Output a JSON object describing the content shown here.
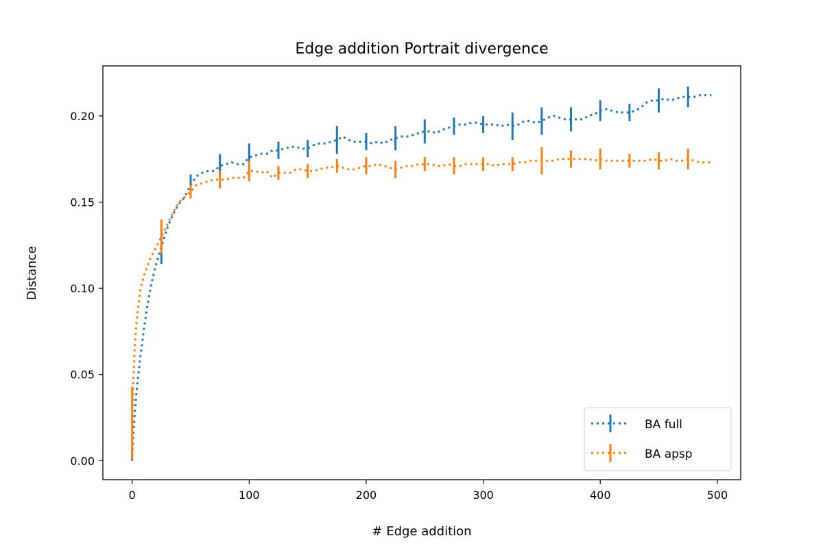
{
  "chart_data": {
    "type": "line",
    "title": "Edge addition Portrait divergence",
    "xlabel": "# Edge addition",
    "ylabel": "Distance",
    "xlim": [
      -25,
      520
    ],
    "ylim": [
      -0.011,
      0.229
    ],
    "xticks": [
      0,
      100,
      200,
      300,
      400,
      500
    ],
    "xtick_labels": [
      "0",
      "100",
      "200",
      "300",
      "400",
      "500"
    ],
    "yticks": [
      0.0,
      0.05,
      0.1,
      0.15,
      0.2
    ],
    "ytick_labels": [
      "0.00",
      "0.05",
      "0.10",
      "0.15",
      "0.20"
    ],
    "grid": false,
    "legend_position": "lower right",
    "series": [
      {
        "name": "BA full",
        "color": "#1f77b4",
        "linestyle": "dotted",
        "x": [
          0,
          1,
          2,
          3,
          5,
          7,
          10,
          13,
          16,
          20,
          25,
          30,
          35,
          40,
          45,
          50,
          55,
          60,
          65,
          70,
          75,
          80,
          85,
          90,
          95,
          100,
          105,
          110,
          115,
          120,
          125,
          130,
          135,
          140,
          145,
          150,
          155,
          160,
          165,
          170,
          175,
          180,
          185,
          190,
          195,
          200,
          205,
          210,
          215,
          220,
          225,
          230,
          235,
          240,
          245,
          250,
          255,
          260,
          265,
          270,
          275,
          280,
          285,
          290,
          295,
          300,
          305,
          310,
          315,
          320,
          325,
          330,
          335,
          340,
          345,
          350,
          355,
          360,
          365,
          370,
          375,
          380,
          385,
          390,
          395,
          400,
          405,
          410,
          415,
          420,
          425,
          430,
          435,
          440,
          445,
          450,
          455,
          460,
          465,
          470,
          475,
          480,
          485,
          490,
          495
        ],
        "y": [
          0.003,
          0.015,
          0.025,
          0.034,
          0.048,
          0.06,
          0.076,
          0.09,
          0.101,
          0.113,
          0.124,
          0.135,
          0.143,
          0.149,
          0.153,
          0.16,
          0.165,
          0.167,
          0.168,
          0.168,
          0.171,
          0.172,
          0.173,
          0.172,
          0.172,
          0.176,
          0.177,
          0.178,
          0.178,
          0.18,
          0.18,
          0.181,
          0.182,
          0.182,
          0.181,
          0.181,
          0.183,
          0.184,
          0.184,
          0.185,
          0.186,
          0.188,
          0.186,
          0.185,
          0.185,
          0.185,
          0.184,
          0.185,
          0.184,
          0.186,
          0.187,
          0.188,
          0.188,
          0.189,
          0.19,
          0.191,
          0.191,
          0.19,
          0.192,
          0.193,
          0.194,
          0.195,
          0.195,
          0.196,
          0.196,
          0.195,
          0.195,
          0.195,
          0.194,
          0.195,
          0.194,
          0.195,
          0.197,
          0.197,
          0.196,
          0.197,
          0.199,
          0.2,
          0.199,
          0.198,
          0.198,
          0.198,
          0.198,
          0.2,
          0.201,
          0.203,
          0.204,
          0.203,
          0.202,
          0.202,
          0.202,
          0.203,
          0.205,
          0.208,
          0.209,
          0.209,
          0.21,
          0.209,
          0.21,
          0.211,
          0.211,
          0.211,
          0.212,
          0.212,
          0.212
        ],
        "error_bars": {
          "x": [
            0,
            25,
            50,
            75,
            100,
            125,
            150,
            175,
            200,
            225,
            250,
            275,
            300,
            325,
            350,
            375,
            400,
            425,
            450,
            475
          ],
          "y": [
            0.003,
            0.124,
            0.16,
            0.171,
            0.176,
            0.18,
            0.181,
            0.186,
            0.185,
            0.187,
            0.191,
            0.194,
            0.195,
            0.194,
            0.197,
            0.198,
            0.203,
            0.202,
            0.209,
            0.211
          ],
          "err": [
            0.003,
            0.01,
            0.006,
            0.007,
            0.008,
            0.005,
            0.005,
            0.008,
            0.005,
            0.007,
            0.007,
            0.005,
            0.005,
            0.008,
            0.008,
            0.007,
            0.006,
            0.005,
            0.007,
            0.006
          ]
        }
      },
      {
        "name": "BA apsp",
        "color": "#ff7f0e",
        "linestyle": "dotted",
        "x": [
          0,
          1,
          2,
          3,
          5,
          7,
          10,
          13,
          16,
          20,
          25,
          30,
          35,
          40,
          45,
          50,
          55,
          60,
          65,
          70,
          75,
          80,
          85,
          90,
          95,
          100,
          105,
          110,
          115,
          120,
          125,
          130,
          135,
          140,
          145,
          150,
          155,
          160,
          165,
          170,
          175,
          180,
          185,
          190,
          195,
          200,
          205,
          210,
          215,
          220,
          225,
          230,
          235,
          240,
          245,
          250,
          255,
          260,
          265,
          270,
          275,
          280,
          285,
          290,
          295,
          300,
          305,
          310,
          315,
          320,
          325,
          330,
          335,
          340,
          345,
          350,
          355,
          360,
          365,
          370,
          375,
          380,
          385,
          390,
          395,
          400,
          405,
          410,
          415,
          420,
          425,
          430,
          435,
          440,
          445,
          450,
          455,
          460,
          465,
          470,
          475,
          480,
          485,
          490,
          495
        ],
        "y": [
          0.022,
          0.045,
          0.062,
          0.075,
          0.088,
          0.099,
          0.107,
          0.113,
          0.118,
          0.123,
          0.13,
          0.137,
          0.144,
          0.15,
          0.153,
          0.156,
          0.16,
          0.161,
          0.162,
          0.163,
          0.163,
          0.163,
          0.164,
          0.164,
          0.164,
          0.168,
          0.168,
          0.167,
          0.168,
          0.164,
          0.167,
          0.167,
          0.167,
          0.169,
          0.169,
          0.168,
          0.168,
          0.169,
          0.17,
          0.17,
          0.171,
          0.17,
          0.169,
          0.169,
          0.17,
          0.171,
          0.171,
          0.172,
          0.171,
          0.17,
          0.169,
          0.17,
          0.171,
          0.171,
          0.172,
          0.172,
          0.172,
          0.171,
          0.171,
          0.172,
          0.171,
          0.171,
          0.172,
          0.172,
          0.172,
          0.172,
          0.172,
          0.171,
          0.172,
          0.172,
          0.172,
          0.173,
          0.173,
          0.174,
          0.174,
          0.174,
          0.174,
          0.174,
          0.175,
          0.175,
          0.175,
          0.175,
          0.175,
          0.175,
          0.174,
          0.175,
          0.174,
          0.174,
          0.174,
          0.174,
          0.174,
          0.174,
          0.174,
          0.174,
          0.175,
          0.174,
          0.174,
          0.175,
          0.174,
          0.174,
          0.175,
          0.174,
          0.173,
          0.173,
          0.173
        ],
        "error_bars": {
          "x": [
            0,
            25,
            50,
            75,
            100,
            125,
            150,
            175,
            200,
            225,
            250,
            275,
            300,
            325,
            350,
            375,
            400,
            425,
            450,
            475
          ],
          "y": [
            0.022,
            0.13,
            0.156,
            0.163,
            0.168,
            0.167,
            0.168,
            0.171,
            0.171,
            0.169,
            0.172,
            0.171,
            0.172,
            0.172,
            0.174,
            0.175,
            0.175,
            0.174,
            0.174,
            0.175
          ],
          "err": [
            0.021,
            0.01,
            0.004,
            0.005,
            0.006,
            0.004,
            0.004,
            0.004,
            0.005,
            0.005,
            0.004,
            0.005,
            0.004,
            0.004,
            0.008,
            0.005,
            0.006,
            0.004,
            0.005,
            0.006
          ]
        }
      }
    ]
  }
}
